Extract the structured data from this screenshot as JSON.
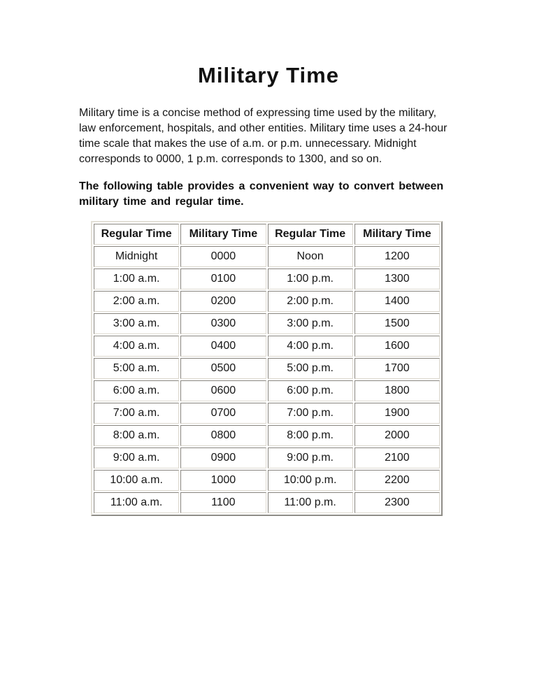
{
  "page": {
    "background_color": "#ffffff",
    "text_color": "#161616"
  },
  "title": "Military Time",
  "intro": {
    "lines": [
      "Military time is a concise method of expressing time used by the military,",
      "law enforcement, hospitals, and other entities. Military time uses a 24-hour",
      "time scale that makes the use of a.m. or p.m. unnecessary. Midnight",
      "corresponds to 0000, 1 p.m. corresponds to 1300, and so on."
    ]
  },
  "subtitle": {
    "lines": [
      "The following table provides a convenient way to convert between",
      "military time and regular time."
    ]
  },
  "table": {
    "border_color": "#dcd8ce",
    "headers": [
      "Regular Time",
      "Military Time",
      "Regular Time",
      "Military Time"
    ],
    "rows": [
      [
        "Midnight",
        "0000",
        "Noon",
        "1200"
      ],
      [
        "1:00 a.m.",
        "0100",
        "1:00 p.m.",
        "1300"
      ],
      [
        "2:00 a.m.",
        "0200",
        "2:00 p.m.",
        "1400"
      ],
      [
        "3:00 a.m.",
        "0300",
        "3:00 p.m.",
        "1500"
      ],
      [
        "4:00 a.m.",
        "0400",
        "4:00 p.m.",
        "1600"
      ],
      [
        "5:00 a.m.",
        "0500",
        "5:00 p.m.",
        "1700"
      ],
      [
        "6:00 a.m.",
        "0600",
        "6:00 p.m.",
        "1800"
      ],
      [
        "7:00 a.m.",
        "0700",
        "7:00 p.m.",
        "1900"
      ],
      [
        "8:00 a.m.",
        "0800",
        "8:00 p.m.",
        "2000"
      ],
      [
        "9:00 a.m.",
        "0900",
        "9:00 p.m.",
        "2100"
      ],
      [
        "10:00 a.m.",
        "1000",
        "10:00 p.m.",
        "2200"
      ],
      [
        "11:00 a.m.",
        "1100",
        "11:00 p.m.",
        "2300"
      ]
    ]
  }
}
